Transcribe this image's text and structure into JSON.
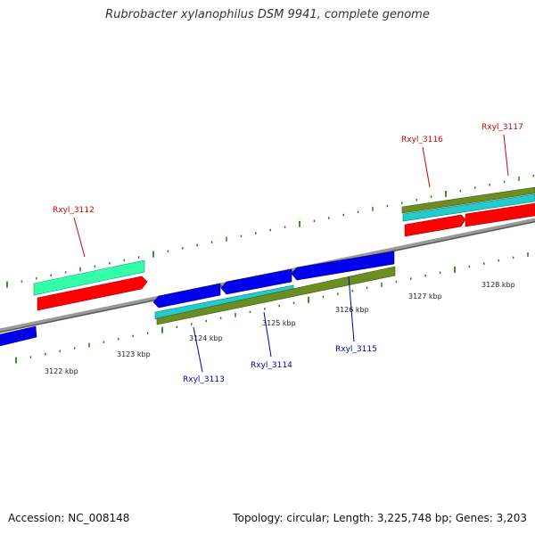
{
  "title": "Rubrobacter xylanophilus DSM 9941, complete genome",
  "footer": {
    "accession": "Accession: NC_008148",
    "summary": "Topology: circular; Length: 3,225,748 bp; Genes: 3,203"
  },
  "colors": {
    "backbone": "#8a8a8a",
    "ticks": "#2e7d1a",
    "forward_label": "#cc0000",
    "reverse_label": "#0000aa",
    "gene_red": "#ff0000",
    "gene_aqua": "#33ffaa",
    "gene_cyan": "#22cccc",
    "gene_olive": "#6b8e23",
    "gene_blue": "#0000ee"
  },
  "scale_labels": [
    "3122 kbp",
    "3123 kbp",
    "3124 kbp",
    "3125 kbp",
    "3126 kbp",
    "3127 kbp",
    "3128 kbp"
  ],
  "gene_labels": {
    "forward": [
      "Rxyl_3112",
      "Rxyl_3116",
      "Rxyl_3117"
    ],
    "reverse": [
      "Rxyl_3113",
      "Rxyl_3114",
      "Rxyl_3115"
    ]
  }
}
